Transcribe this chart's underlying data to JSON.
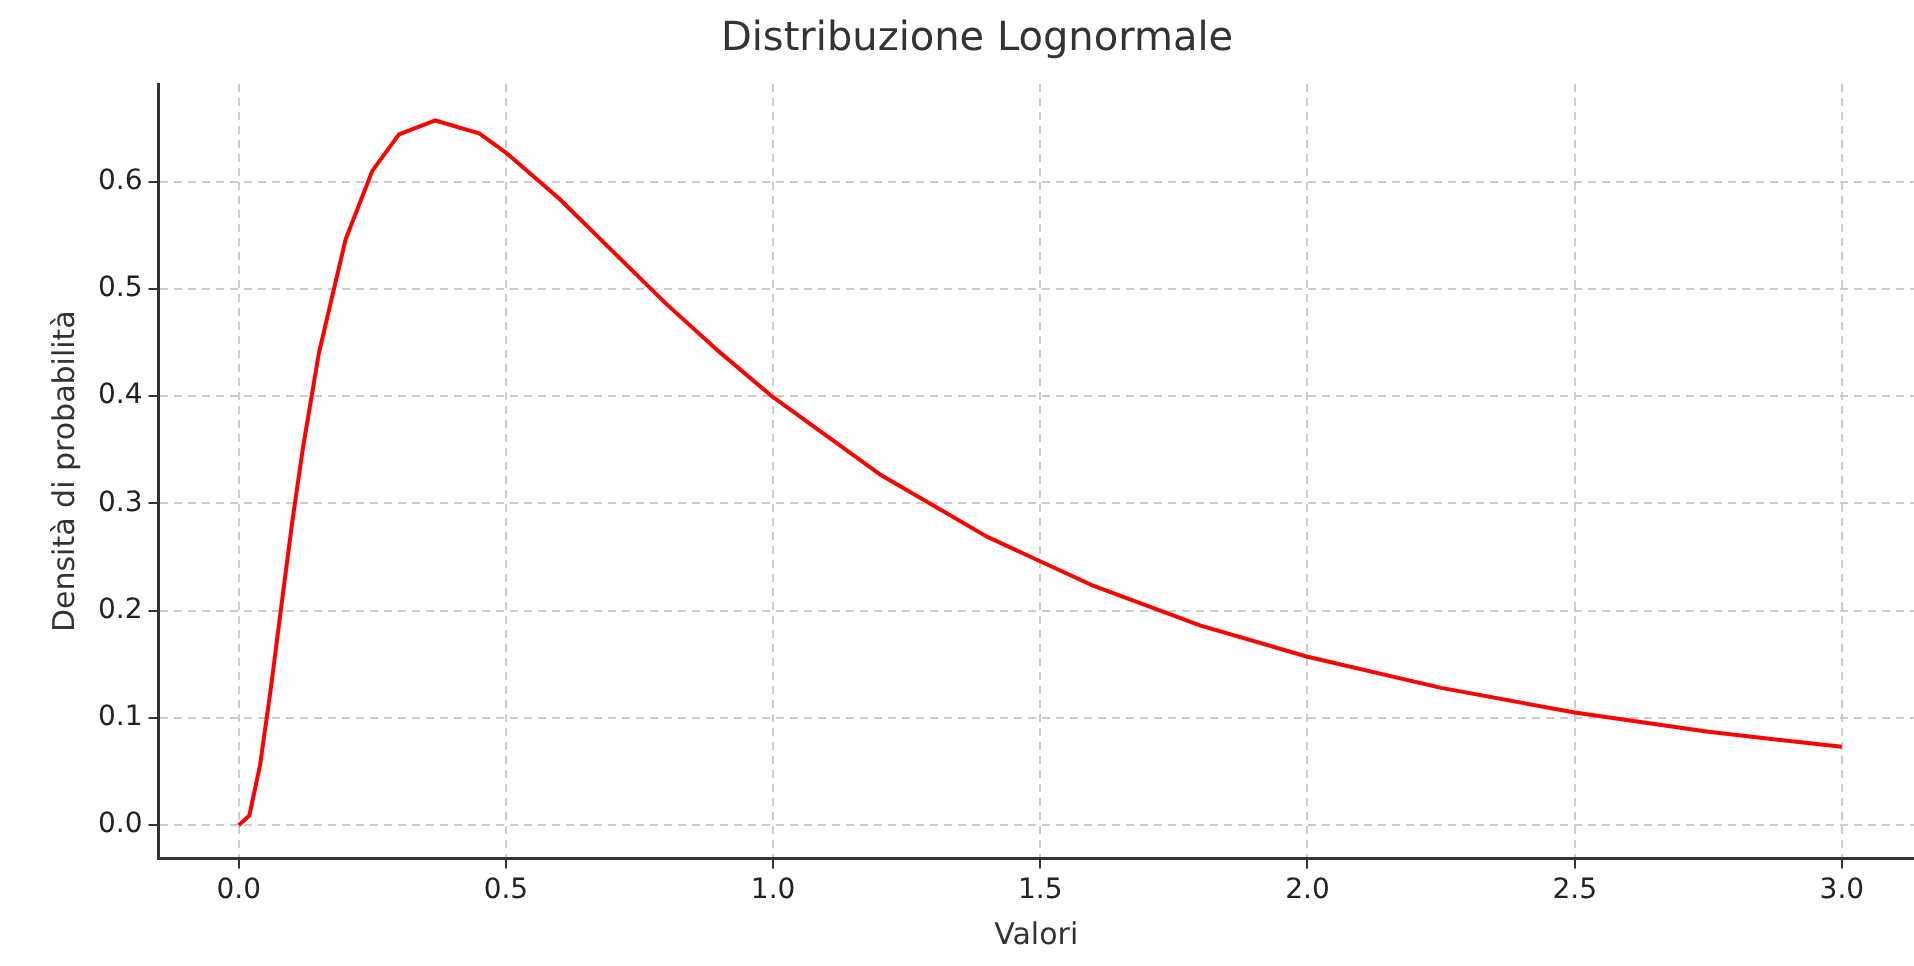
{
  "chart_data": {
    "type": "line",
    "title": "Distribuzione Lognormale",
    "xlabel": "Valori",
    "ylabel": "Densità di probabilità",
    "x": [
      0,
      0.02,
      0.04,
      0.06,
      0.08,
      0.1,
      0.12,
      0.15,
      0.2,
      0.25,
      0.3,
      0.368,
      0.45,
      0.5,
      0.6,
      0.7,
      0.8,
      0.9,
      1.0,
      1.2,
      1.4,
      1.6,
      1.8,
      2.0,
      2.25,
      2.5,
      2.75,
      3.0
    ],
    "series": [
      {
        "color": "#ff0000",
        "values": [
          0,
          0.009,
          0.056,
          0.127,
          0.205,
          0.282,
          0.351,
          0.44,
          0.546,
          0.61,
          0.644,
          0.657,
          0.645,
          0.627,
          0.584,
          0.535,
          0.486,
          0.441,
          0.399,
          0.327,
          0.269,
          0.223,
          0.186,
          0.157,
          0.128,
          0.105,
          0.087,
          0.073
        ]
      }
    ],
    "xlim": [
      -0.15,
      3.135
    ],
    "xticks": [
      {
        "value": 0,
        "label": "0.0"
      },
      {
        "value": 0.5,
        "label": "0.5"
      },
      {
        "value": 1,
        "label": "1.0"
      },
      {
        "value": 1.5,
        "label": "1.5"
      },
      {
        "value": 2,
        "label": "2.0"
      },
      {
        "value": 2.5,
        "label": "2.5"
      },
      {
        "value": 3,
        "label": "3.0"
      }
    ],
    "ylim": [
      -0.031,
      0.691
    ],
    "yticks": [
      {
        "value": 0,
        "label": "0.0"
      },
      {
        "value": 0.1,
        "label": "0.1"
      },
      {
        "value": 0.2,
        "label": "0.2"
      },
      {
        "value": 0.3,
        "label": "0.3"
      },
      {
        "value": 0.4,
        "label": "0.4"
      },
      {
        "value": 0.5,
        "label": "0.5"
      },
      {
        "value": 0.6,
        "label": "0.6"
      }
    ],
    "grid": true,
    "legend": false,
    "marker": "none",
    "line_style": "solid"
  }
}
